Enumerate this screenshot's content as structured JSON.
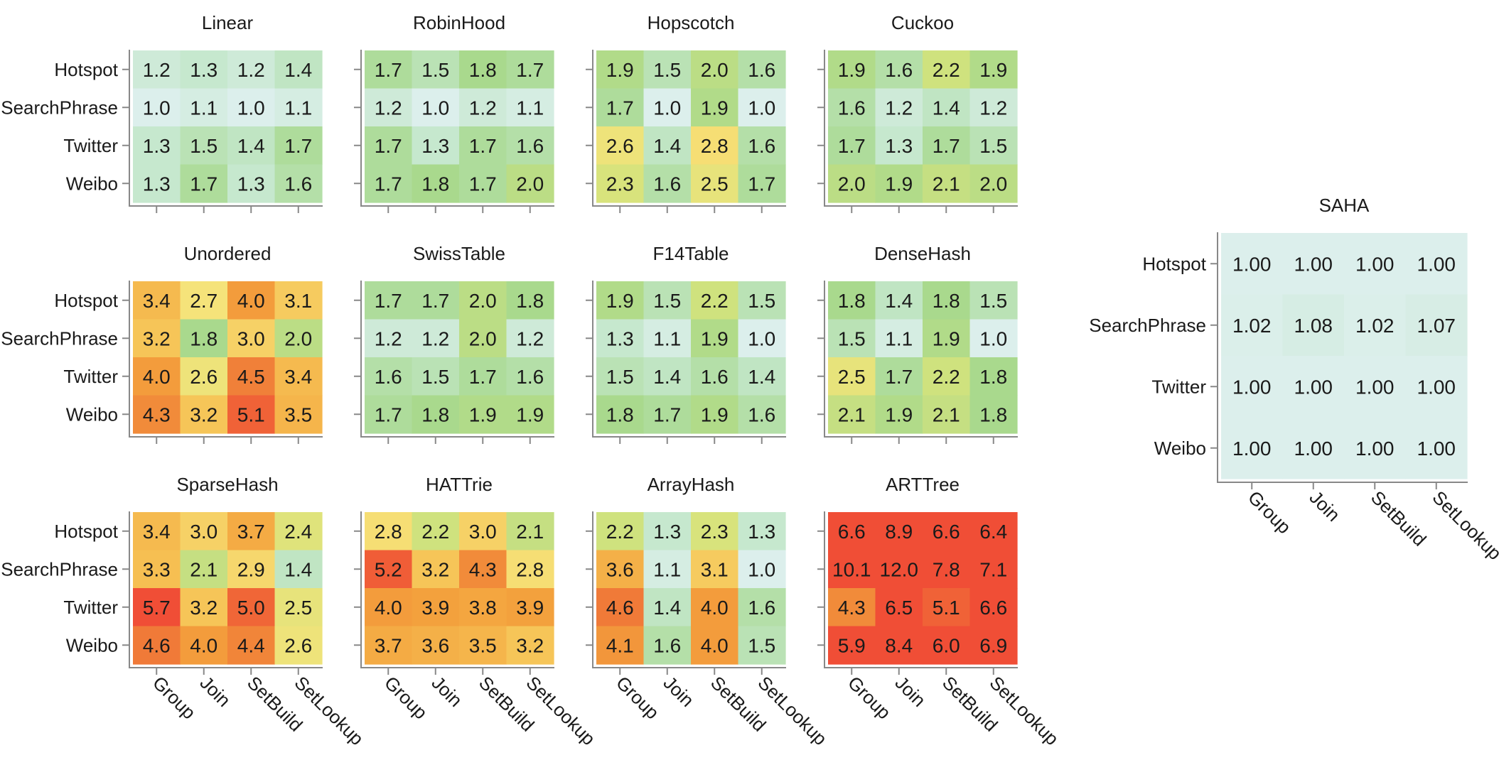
{
  "chart_data": {
    "type": "heatmap",
    "rows": [
      "Hotspot",
      "SearchPhrase",
      "Twitter",
      "Weibo"
    ],
    "columns": [
      "Group",
      "Join",
      "SetBuild",
      "SetLookup"
    ],
    "color_scale": {
      "low": "#dcefec",
      "mid": "#f6e37a",
      "high": "#f04e36",
      "domain_min": 1.0,
      "domain_max": 5.5
    },
    "panels": [
      {
        "title": "Linear",
        "values": [
          [
            1.2,
            1.3,
            1.2,
            1.4
          ],
          [
            1.0,
            1.1,
            1.0,
            1.1
          ],
          [
            1.3,
            1.5,
            1.4,
            1.7
          ],
          [
            1.3,
            1.7,
            1.3,
            1.6
          ]
        ],
        "labels": [
          [
            "1.2",
            "1.3",
            "1.2",
            "1.4"
          ],
          [
            "1.0",
            "1.1",
            "1.0",
            "1.1"
          ],
          [
            "1.3",
            "1.5",
            "1.4",
            "1.7"
          ],
          [
            "1.3",
            "1.7",
            "1.3",
            "1.6"
          ]
        ]
      },
      {
        "title": "RobinHood",
        "values": [
          [
            1.7,
            1.5,
            1.8,
            1.7
          ],
          [
            1.2,
            1.0,
            1.2,
            1.1
          ],
          [
            1.7,
            1.3,
            1.7,
            1.6
          ],
          [
            1.7,
            1.8,
            1.7,
            2.0
          ]
        ],
        "labels": [
          [
            "1.7",
            "1.5",
            "1.8",
            "1.7"
          ],
          [
            "1.2",
            "1.0",
            "1.2",
            "1.1"
          ],
          [
            "1.7",
            "1.3",
            "1.7",
            "1.6"
          ],
          [
            "1.7",
            "1.8",
            "1.7",
            "2.0"
          ]
        ]
      },
      {
        "title": "Hopscotch",
        "values": [
          [
            1.9,
            1.5,
            2.0,
            1.6
          ],
          [
            1.7,
            1.0,
            1.9,
            1.0
          ],
          [
            2.6,
            1.4,
            2.8,
            1.6
          ],
          [
            2.3,
            1.6,
            2.5,
            1.7
          ]
        ],
        "labels": [
          [
            "1.9",
            "1.5",
            "2.0",
            "1.6"
          ],
          [
            "1.7",
            "1.0",
            "1.9",
            "1.0"
          ],
          [
            "2.6",
            "1.4",
            "2.8",
            "1.6"
          ],
          [
            "2.3",
            "1.6",
            "2.5",
            "1.7"
          ]
        ]
      },
      {
        "title": "Cuckoo",
        "values": [
          [
            1.9,
            1.6,
            2.2,
            1.9
          ],
          [
            1.6,
            1.2,
            1.4,
            1.2
          ],
          [
            1.7,
            1.3,
            1.7,
            1.5
          ],
          [
            2.0,
            1.9,
            2.1,
            2.0
          ]
        ],
        "labels": [
          [
            "1.9",
            "1.6",
            "2.2",
            "1.9"
          ],
          [
            "1.6",
            "1.2",
            "1.4",
            "1.2"
          ],
          [
            "1.7",
            "1.3",
            "1.7",
            "1.5"
          ],
          [
            "2.0",
            "1.9",
            "2.1",
            "2.0"
          ]
        ]
      },
      {
        "title": "Unordered",
        "values": [
          [
            3.4,
            2.7,
            4.0,
            3.1
          ],
          [
            3.2,
            1.8,
            3.0,
            2.0
          ],
          [
            4.0,
            2.6,
            4.5,
            3.4
          ],
          [
            4.3,
            3.2,
            5.1,
            3.5
          ]
        ],
        "labels": [
          [
            "3.4",
            "2.7",
            "4.0",
            "3.1"
          ],
          [
            "3.2",
            "1.8",
            "3.0",
            "2.0"
          ],
          [
            "4.0",
            "2.6",
            "4.5",
            "3.4"
          ],
          [
            "4.3",
            "3.2",
            "5.1",
            "3.5"
          ]
        ]
      },
      {
        "title": "SwissTable",
        "values": [
          [
            1.7,
            1.7,
            2.0,
            1.8
          ],
          [
            1.2,
            1.2,
            2.0,
            1.2
          ],
          [
            1.6,
            1.5,
            1.7,
            1.6
          ],
          [
            1.7,
            1.8,
            1.9,
            1.9
          ]
        ],
        "labels": [
          [
            "1.7",
            "1.7",
            "2.0",
            "1.8"
          ],
          [
            "1.2",
            "1.2",
            "2.0",
            "1.2"
          ],
          [
            "1.6",
            "1.5",
            "1.7",
            "1.6"
          ],
          [
            "1.7",
            "1.8",
            "1.9",
            "1.9"
          ]
        ]
      },
      {
        "title": "F14Table",
        "values": [
          [
            1.9,
            1.5,
            2.2,
            1.5
          ],
          [
            1.3,
            1.1,
            1.9,
            1.0
          ],
          [
            1.5,
            1.4,
            1.6,
            1.4
          ],
          [
            1.8,
            1.7,
            1.9,
            1.6
          ]
        ],
        "labels": [
          [
            "1.9",
            "1.5",
            "2.2",
            "1.5"
          ],
          [
            "1.3",
            "1.1",
            "1.9",
            "1.0"
          ],
          [
            "1.5",
            "1.4",
            "1.6",
            "1.4"
          ],
          [
            "1.8",
            "1.7",
            "1.9",
            "1.6"
          ]
        ]
      },
      {
        "title": "DenseHash",
        "values": [
          [
            1.8,
            1.4,
            1.8,
            1.5
          ],
          [
            1.5,
            1.1,
            1.9,
            1.0
          ],
          [
            2.5,
            1.7,
            2.2,
            1.8
          ],
          [
            2.1,
            1.9,
            2.1,
            1.8
          ]
        ],
        "labels": [
          [
            "1.8",
            "1.4",
            "1.8",
            "1.5"
          ],
          [
            "1.5",
            "1.1",
            "1.9",
            "1.0"
          ],
          [
            "2.5",
            "1.7",
            "2.2",
            "1.8"
          ],
          [
            "2.1",
            "1.9",
            "2.1",
            "1.8"
          ]
        ]
      },
      {
        "title": "SparseHash",
        "values": [
          [
            3.4,
            3.0,
            3.7,
            2.4
          ],
          [
            3.3,
            2.1,
            2.9,
            1.4
          ],
          [
            5.7,
            3.2,
            5.0,
            2.5
          ],
          [
            4.6,
            4.0,
            4.4,
            2.6
          ]
        ],
        "labels": [
          [
            "3.4",
            "3.0",
            "3.7",
            "2.4"
          ],
          [
            "3.3",
            "2.1",
            "2.9",
            "1.4"
          ],
          [
            "5.7",
            "3.2",
            "5.0",
            "2.5"
          ],
          [
            "4.6",
            "4.0",
            "4.4",
            "2.6"
          ]
        ]
      },
      {
        "title": "HATTrie",
        "values": [
          [
            2.8,
            2.2,
            3.0,
            2.1
          ],
          [
            5.2,
            3.2,
            4.3,
            2.8
          ],
          [
            4.0,
            3.9,
            3.8,
            3.9
          ],
          [
            3.7,
            3.6,
            3.5,
            3.2
          ]
        ],
        "labels": [
          [
            "2.8",
            "2.2",
            "3.0",
            "2.1"
          ],
          [
            "5.2",
            "3.2",
            "4.3",
            "2.8"
          ],
          [
            "4.0",
            "3.9",
            "3.8",
            "3.9"
          ],
          [
            "3.7",
            "3.6",
            "3.5",
            "3.2"
          ]
        ]
      },
      {
        "title": "ArrayHash",
        "values": [
          [
            2.2,
            1.3,
            2.3,
            1.3
          ],
          [
            3.6,
            1.1,
            3.1,
            1.0
          ],
          [
            4.6,
            1.4,
            4.0,
            1.6
          ],
          [
            4.1,
            1.6,
            4.0,
            1.5
          ]
        ],
        "labels": [
          [
            "2.2",
            "1.3",
            "2.3",
            "1.3"
          ],
          [
            "3.6",
            "1.1",
            "3.1",
            "1.0"
          ],
          [
            "4.6",
            "1.4",
            "4.0",
            "1.6"
          ],
          [
            "4.1",
            "1.6",
            "4.0",
            "1.5"
          ]
        ]
      },
      {
        "title": "ARTTree",
        "values": [
          [
            6.6,
            8.9,
            6.6,
            6.4
          ],
          [
            10.1,
            12.0,
            7.8,
            7.1
          ],
          [
            4.3,
            6.5,
            5.1,
            6.6
          ],
          [
            5.9,
            8.4,
            6.0,
            6.9
          ]
        ],
        "labels": [
          [
            "6.6",
            "8.9",
            "6.6",
            "6.4"
          ],
          [
            "10.1",
            "12.0",
            "7.8",
            "7.1"
          ],
          [
            "4.3",
            "6.5",
            "5.1",
            "6.6"
          ],
          [
            "5.9",
            "8.4",
            "6.0",
            "6.9"
          ]
        ]
      },
      {
        "title": "SAHA",
        "values": [
          [
            1.0,
            1.0,
            1.0,
            1.0
          ],
          [
            1.02,
            1.08,
            1.02,
            1.07
          ],
          [
            1.0,
            1.0,
            1.0,
            1.0
          ],
          [
            1.0,
            1.0,
            1.0,
            1.0
          ]
        ],
        "labels": [
          [
            "1.00",
            "1.00",
            "1.00",
            "1.00"
          ],
          [
            "1.02",
            "1.08",
            "1.02",
            "1.07"
          ],
          [
            "1.00",
            "1.00",
            "1.00",
            "1.00"
          ],
          [
            "1.00",
            "1.00",
            "1.00",
            "1.00"
          ]
        ]
      }
    ]
  }
}
